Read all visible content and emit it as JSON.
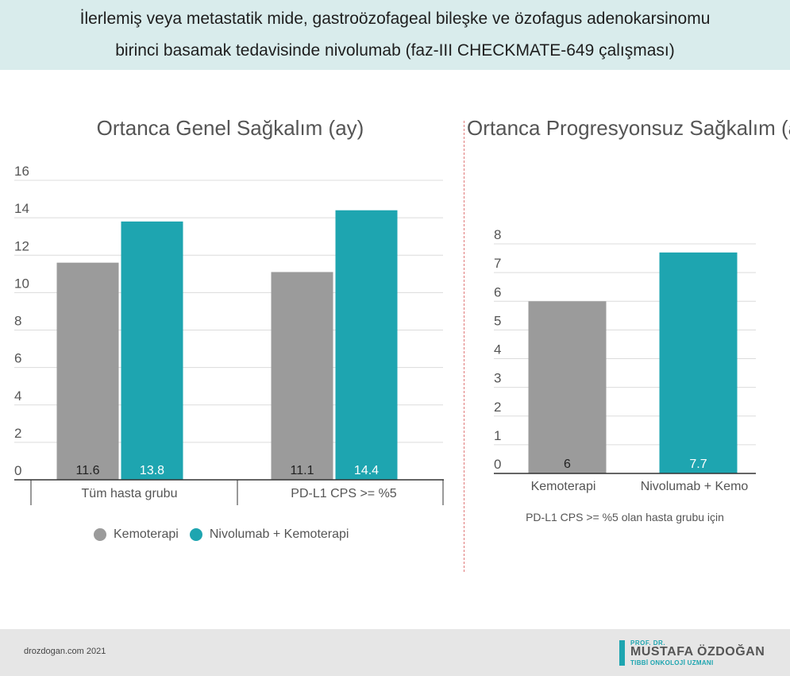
{
  "header": {
    "line1": "İlerlemiş veya metastatik mide, gastroözofageal bileşke ve özofagus adenokarsinomu",
    "line2": "birinci basamak tedavisinde nivolumab (faz-III CHECKMATE-649 çalışması)",
    "background": "#d9ecec"
  },
  "colors": {
    "kemoterapi": "#9b9b9b",
    "nivolumab": "#1ea5b0",
    "divider": "#e07a7a"
  },
  "chart_data": [
    {
      "type": "bar",
      "title": "Ortanca Genel Sağkalım (ay)",
      "categories": [
        "Tüm hasta grubu",
        "PD-L1 CPS >= %5"
      ],
      "series": [
        {
          "name": "Kemoterapi",
          "values": [
            11.6,
            11.1
          ],
          "color": "#9b9b9b"
        },
        {
          "name": "Nivolumab + Kemoterapi",
          "values": [
            13.8,
            14.4
          ],
          "color": "#1ea5b0"
        }
      ],
      "value_labels": [
        [
          "11.6",
          "11.1"
        ],
        [
          "13.8",
          "14.4"
        ]
      ],
      "ylim": [
        0,
        16
      ],
      "yticks": [
        0,
        2,
        4,
        6,
        8,
        10,
        12,
        14,
        16
      ],
      "grid": true,
      "legend": "bottom"
    },
    {
      "type": "bar",
      "title": "Ortanca Progresyonsuz Sağkalım (ay)",
      "categories": [
        "Kemoterapi",
        "Nivolumab + Kemo"
      ],
      "values": [
        6,
        7.7
      ],
      "value_labels": [
        "6",
        "7.7"
      ],
      "colors": [
        "#9b9b9b",
        "#1ea5b0"
      ],
      "ylim": [
        0,
        8
      ],
      "yticks": [
        0,
        1,
        2,
        3,
        4,
        5,
        6,
        7,
        8
      ],
      "grid": true,
      "note": "PD-L1 CPS >= %5 olan hasta grubu için"
    }
  ],
  "footer": {
    "site": "drozdogan.com 2021",
    "logo_top": "PROF. DR.",
    "logo_name": "MUSTAFA ÖZDOĞAN",
    "logo_sub": "TIBBİ ONKOLOJİ UZMANI"
  }
}
